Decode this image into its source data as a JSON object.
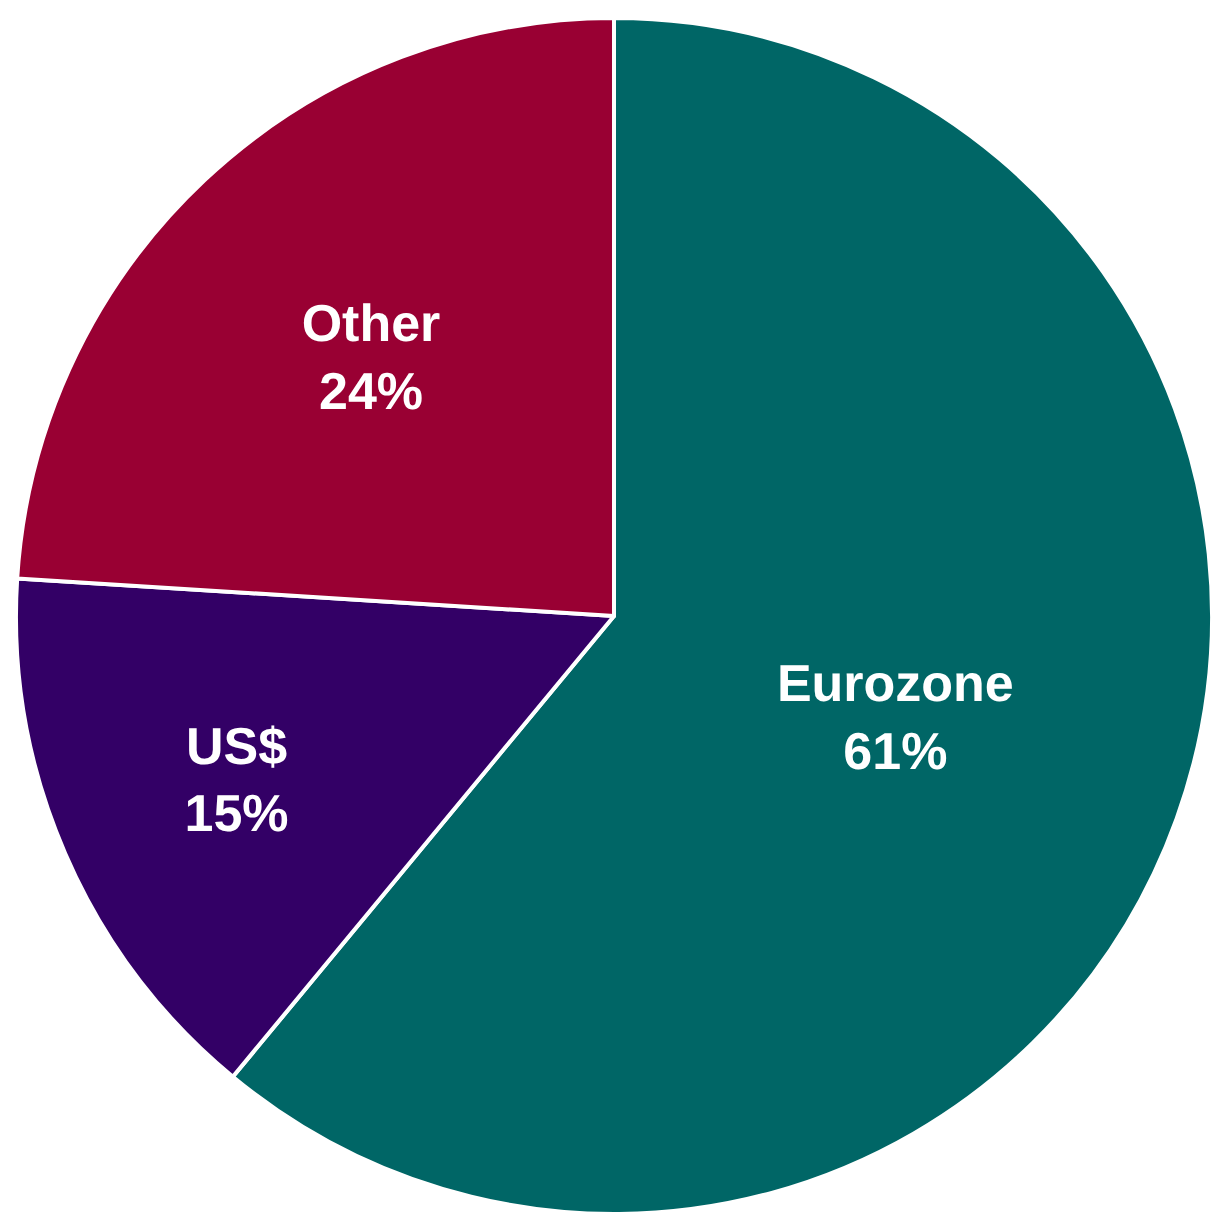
{
  "chart_data": {
    "type": "pie",
    "categories": [
      "Eurozone",
      "US$",
      "Other"
    ],
    "values": [
      61,
      15,
      24
    ],
    "value_labels": [
      "61%",
      "15%",
      "24%"
    ],
    "colors": [
      "#006666",
      "#330066",
      "#990033"
    ],
    "legend": false
  }
}
